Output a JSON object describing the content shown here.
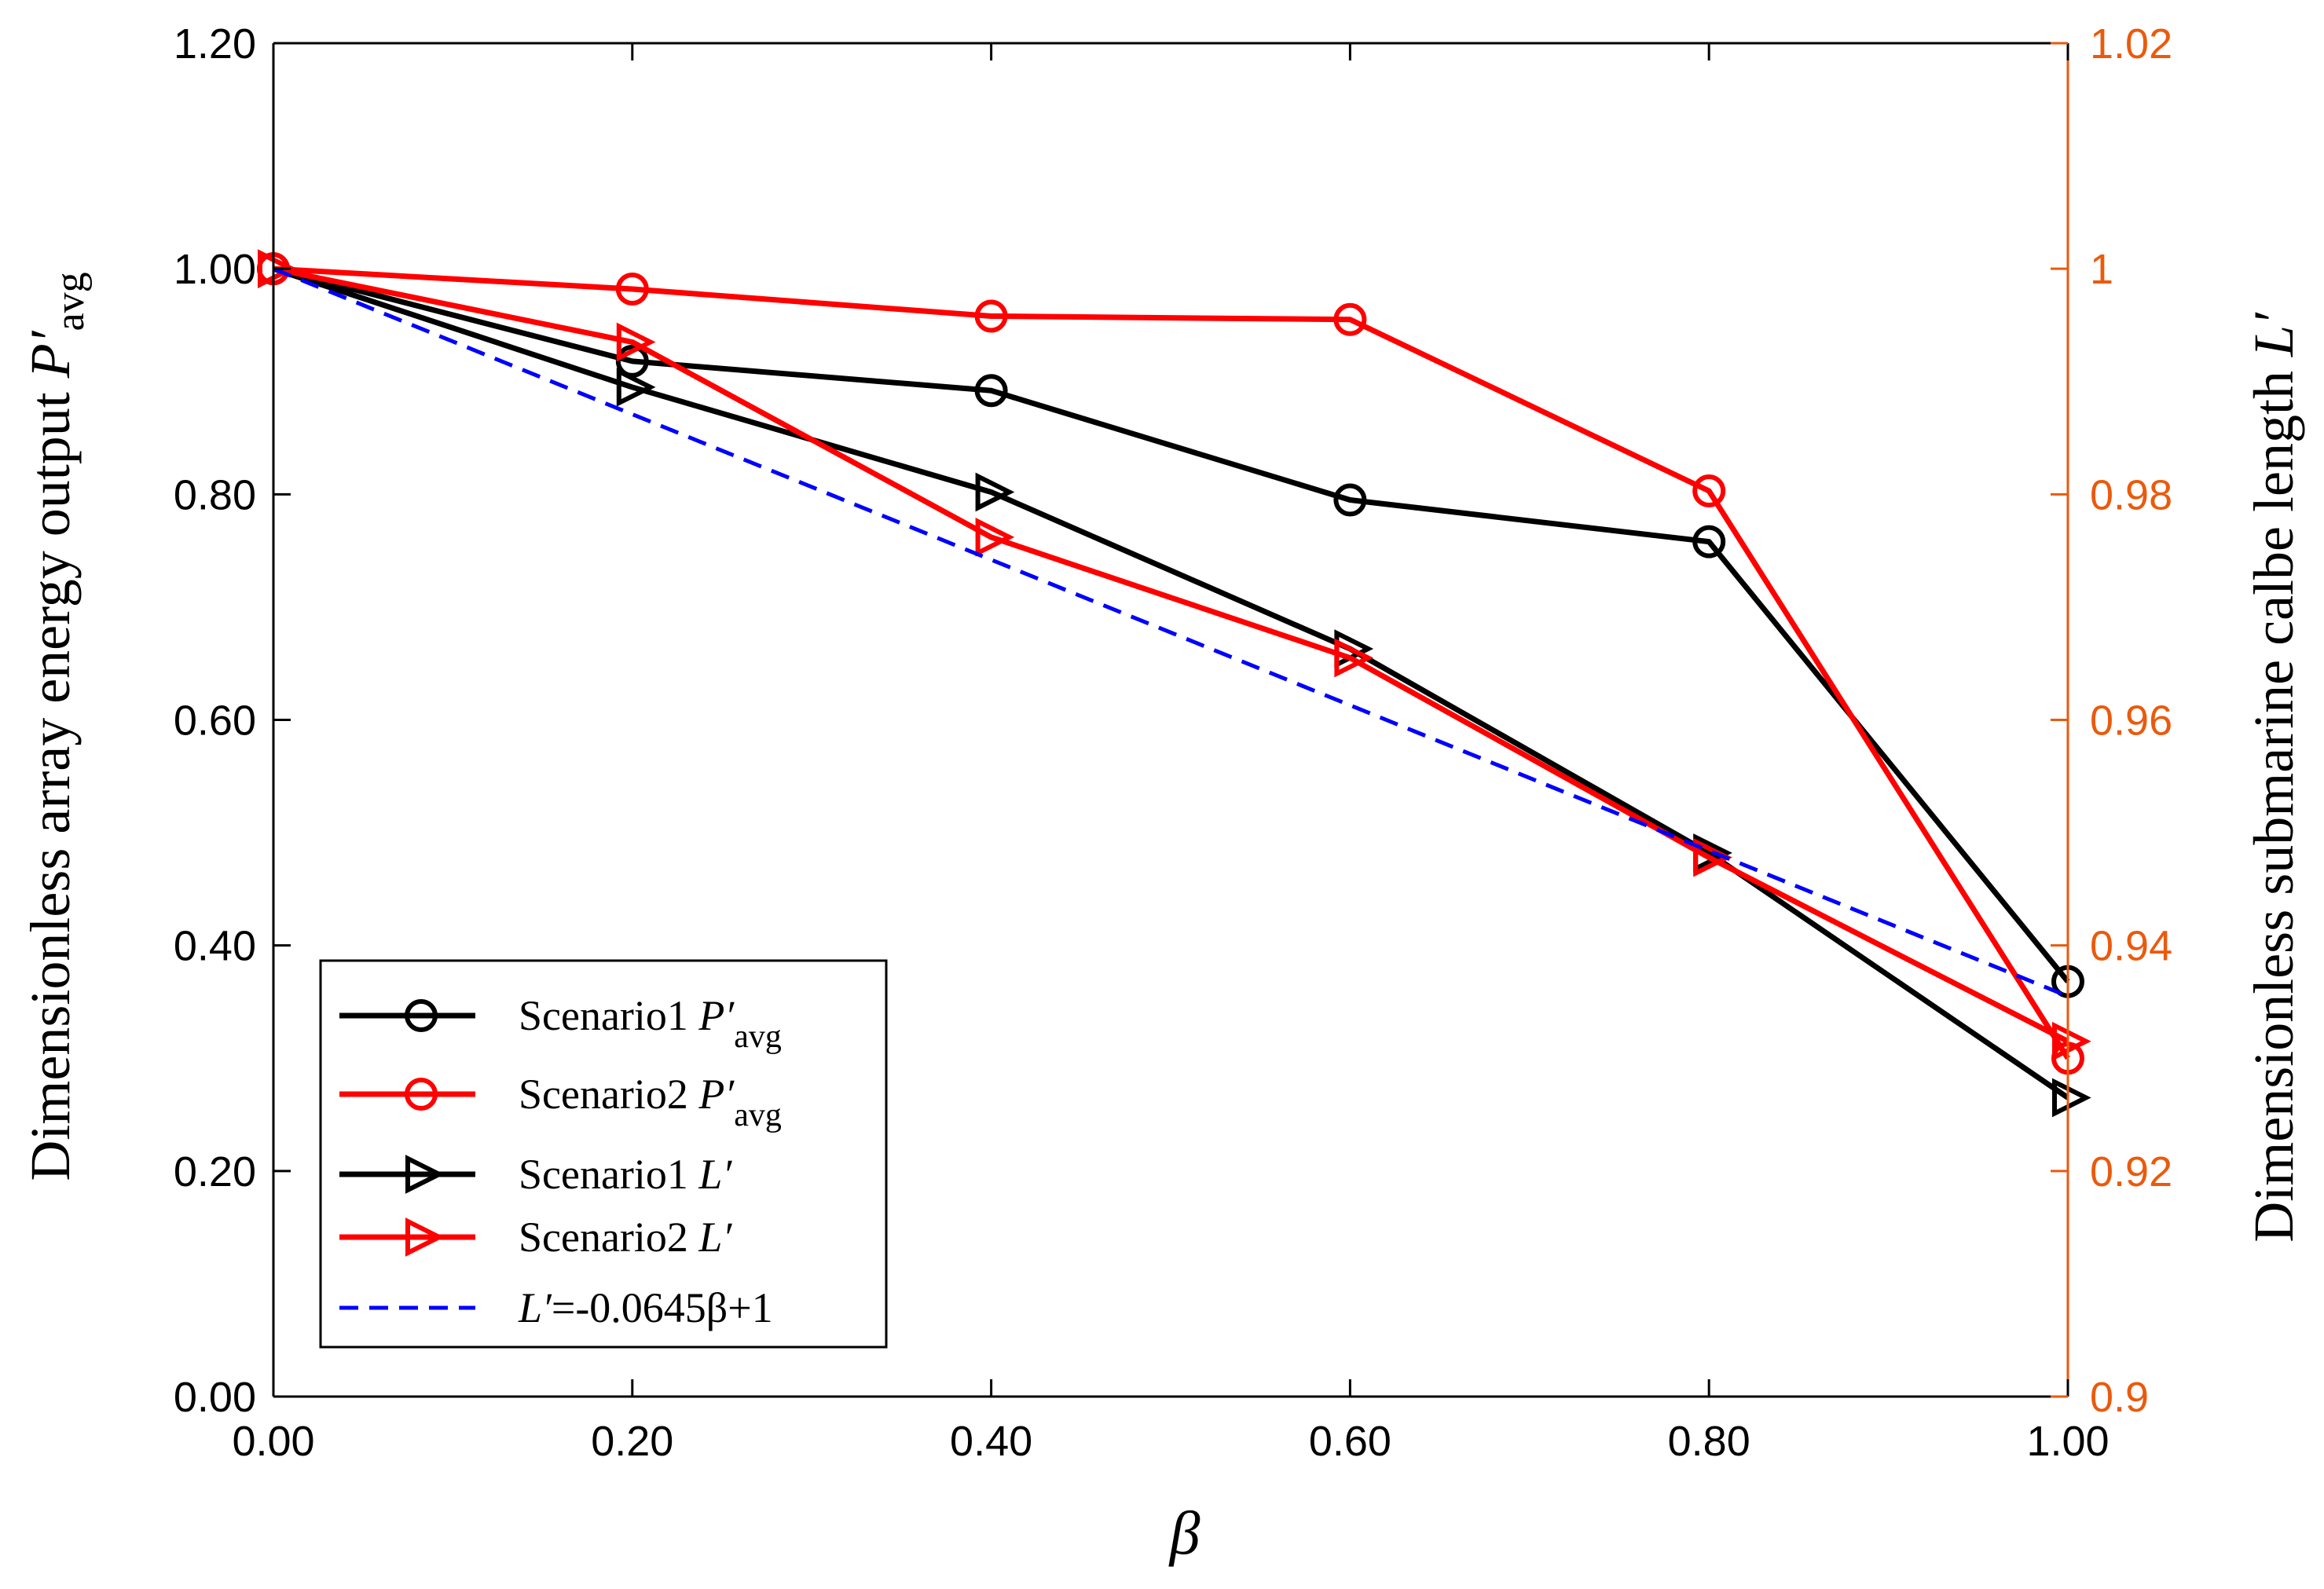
{
  "colors": {
    "black": "#000000",
    "red": "#ff0000",
    "blue": "#0000ff",
    "right_axis": "#ea5a0c"
  },
  "chart_data": {
    "type": "line",
    "title": "",
    "xlabel": "β",
    "ylabel_left": {
      "prefix": "Dimensionless array energy output ",
      "symbol": "P′",
      "subscript": "avg"
    },
    "ylabel_right": {
      "prefix": "Dimensionless submarine calbe length ",
      "symbol": "L′"
    },
    "xlim": [
      0,
      1
    ],
    "ylim_left": [
      0,
      1.2
    ],
    "ylim_right": [
      0.9,
      1.02
    ],
    "x_ticks": [
      0,
      0.2,
      0.4,
      0.6,
      0.8,
      1.0
    ],
    "x_tick_labels": [
      "0.00",
      "0.20",
      "0.40",
      "0.60",
      "0.80",
      "1.00"
    ],
    "left_ticks": [
      0,
      0.2,
      0.4,
      0.6,
      0.8,
      1.0,
      1.2
    ],
    "left_tick_labels": [
      "0.00",
      "0.20",
      "0.40",
      "0.60",
      "0.80",
      "1.00",
      "1.20"
    ],
    "right_ticks": [
      0.9,
      0.92,
      0.94,
      0.96,
      0.98,
      1.0,
      1.02
    ],
    "right_tick_labels": [
      "0.9",
      "0.92",
      "0.94",
      "0.96",
      "0.98",
      "1",
      "1.02"
    ],
    "grid": false,
    "legend_position": "bottom-left",
    "x": [
      0,
      0.2,
      0.4,
      0.6,
      0.8,
      1.0
    ],
    "series": [
      {
        "name": "Scenario1 P′avg",
        "label_prefix": "Scenario1 ",
        "label_symbol": "P′",
        "label_subscript": "avg",
        "axis": "left",
        "marker": "circle",
        "color": "#000000",
        "line": "solid",
        "values": [
          1.0,
          0.918,
          0.892,
          0.795,
          0.758,
          0.368
        ]
      },
      {
        "name": "Scenario2 P′avg",
        "label_prefix": "Scenario2 ",
        "label_symbol": "P′",
        "label_subscript": "avg",
        "axis": "left",
        "marker": "circle",
        "color": "#ff0000",
        "line": "solid",
        "values": [
          1.0,
          0.982,
          0.958,
          0.955,
          0.803,
          0.3
        ]
      },
      {
        "name": "Scenario1 L′",
        "label_prefix": "Scenario1 ",
        "label_symbol": "L′",
        "label_subscript": "",
        "axis": "right",
        "marker": "triangle-right",
        "color": "#000000",
        "line": "solid",
        "values": [
          1.0,
          0.9895,
          0.9802,
          0.9663,
          0.9482,
          0.9265
        ]
      },
      {
        "name": "Scenario2 L′",
        "label_prefix": "Scenario2 ",
        "label_symbol": "L′",
        "label_subscript": "",
        "axis": "right",
        "marker": "triangle-right",
        "color": "#ff0000",
        "line": "solid",
        "values": [
          1.0,
          0.9935,
          0.9762,
          0.9655,
          0.9478,
          0.9315
        ]
      },
      {
        "name": "L′=-0.0645β+1",
        "label_prefix": "",
        "label_symbol": "L′",
        "label_subscript": "",
        "label_suffix": "=-0.0645β+1",
        "axis": "right",
        "marker": "none",
        "color": "#0000ff",
        "line": "dashed",
        "values": [
          1.0,
          0.9871,
          0.9742,
          0.9613,
          0.9484,
          0.9355
        ]
      }
    ]
  }
}
